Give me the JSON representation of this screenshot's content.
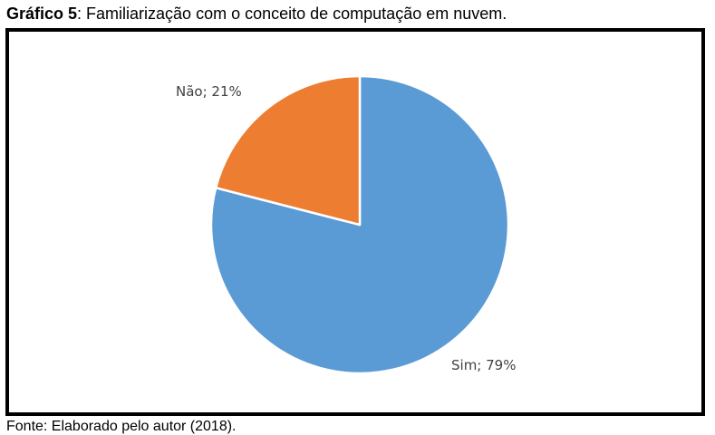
{
  "caption": {
    "prefix": "Gráfico 5",
    "text": ": Familiarização com o conceito de computação em nuvem."
  },
  "source_text": "Fonte: Elaborado pelo autor (2018).",
  "colors": {
    "Sim": "#5b9bd5",
    "Não": "#ed7d31"
  },
  "chart_data": {
    "type": "pie",
    "title": "Gráfico 5: Familiarização com o conceito de computação em nuvem.",
    "start": "12 o'clock, clockwise",
    "slices": [
      {
        "label": "Sim",
        "value": 79,
        "color": "#5b9bd5",
        "label_text": "Sim; 79%"
      },
      {
        "label": "Não",
        "value": 21,
        "color": "#ed7d31",
        "label_text": "Não; 21%"
      }
    ],
    "legend": "none"
  }
}
